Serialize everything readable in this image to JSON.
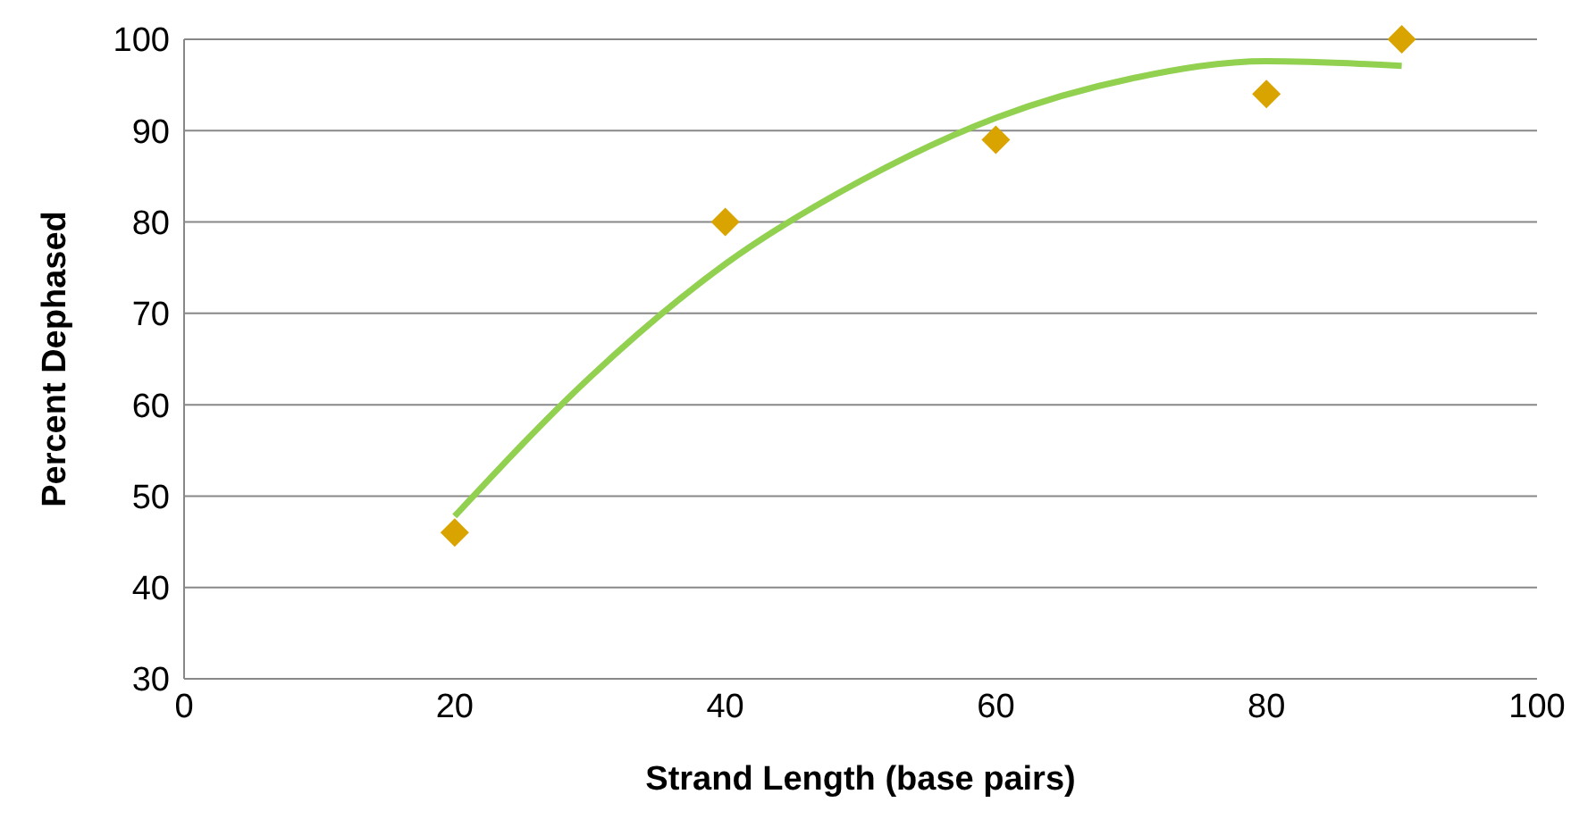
{
  "chart_data": {
    "type": "scatter",
    "xlabel": "Strand Length (base pairs)",
    "ylabel": "Percent Dephased",
    "xlim": [
      0,
      100
    ],
    "xticks": [
      0,
      20,
      40,
      60,
      80,
      100
    ],
    "ylim": [
      30,
      100
    ],
    "yticks": [
      30,
      40,
      50,
      60,
      70,
      80,
      90,
      100
    ],
    "grid": "y",
    "legend": false,
    "series": [
      {
        "color": "#d9a400",
        "marker": "diamond",
        "x": [
          20,
          40,
          60,
          80,
          90
        ],
        "values": [
          46,
          80,
          89,
          94,
          100
        ]
      },
      {
        "type": "line",
        "color": "#92d050",
        "marker": "none",
        "line_style": "solid",
        "x": [
          20,
          30,
          40,
          50,
          60,
          70,
          80,
          90
        ],
        "values": [
          47.8,
          63,
          75.4,
          84.5,
          91.4,
          95.7,
          97.6,
          97.1
        ]
      }
    ]
  }
}
